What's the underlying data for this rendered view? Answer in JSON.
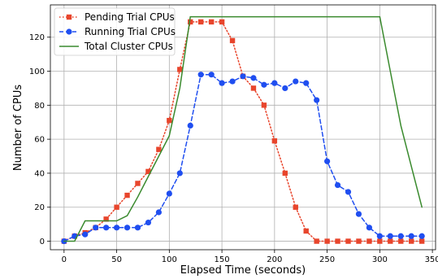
{
  "chart_data": {
    "type": "line",
    "xlabel": "Elapsed Time (seconds)",
    "ylabel": "Number of CPUs",
    "xlim": [
      -13,
      353
    ],
    "ylim": [
      -5,
      139
    ],
    "xticks": [
      0,
      50,
      100,
      150,
      200,
      250,
      300,
      350
    ],
    "yticks": [
      0,
      20,
      40,
      60,
      80,
      100,
      120
    ],
    "grid": true,
    "legend_position": "top-left",
    "series": [
      {
        "name": "Pending Trial CPUs",
        "color": "#e8452c",
        "line_style": "dotted",
        "marker": "square",
        "x": [
          0,
          10,
          20,
          30,
          40,
          50,
          60,
          70,
          80,
          90,
          100,
          110,
          120,
          130,
          140,
          150,
          160,
          170,
          180,
          190,
          200,
          210,
          220,
          230,
          240,
          250,
          260,
          270,
          280,
          290,
          300,
          310,
          320,
          330,
          340
        ],
        "y": [
          0,
          3,
          5,
          8,
          13,
          20,
          27,
          34,
          41,
          54,
          71,
          101,
          129,
          129,
          129,
          129,
          118,
          97,
          90,
          80,
          59,
          40,
          20,
          6,
          0,
          0,
          0,
          0,
          0,
          0,
          0,
          0,
          0,
          0,
          0
        ]
      },
      {
        "name": "Running Trial CPUs",
        "color": "#1f4ef0",
        "line_style": "dashed",
        "marker": "circle",
        "x": [
          0,
          10,
          20,
          30,
          40,
          50,
          60,
          70,
          80,
          90,
          100,
          110,
          120,
          130,
          140,
          150,
          160,
          170,
          180,
          190,
          200,
          210,
          220,
          230,
          240,
          250,
          260,
          270,
          280,
          290,
          300,
          310,
          320,
          330,
          340
        ],
        "y": [
          0,
          3,
          4,
          8,
          8,
          8,
          8,
          8,
          11,
          17,
          28,
          40,
          68,
          98,
          98,
          93,
          94,
          97,
          96,
          92,
          93,
          90,
          94,
          93,
          83,
          47,
          33,
          29,
          16,
          8,
          3,
          3,
          3,
          3,
          3
        ]
      },
      {
        "name": "Total Cluster CPUs",
        "color": "#3a8a2e",
        "line_style": "solid",
        "marker": "none",
        "x": [
          0,
          5,
          10,
          20,
          50,
          60,
          70,
          80,
          90,
          100,
          110,
          120,
          130,
          300,
          310,
          320,
          330,
          340
        ],
        "y": [
          0,
          0,
          0,
          12,
          12,
          15,
          26,
          38,
          50,
          62,
          90,
          132,
          132,
          132,
          100,
          68,
          44,
          20
        ]
      }
    ]
  }
}
